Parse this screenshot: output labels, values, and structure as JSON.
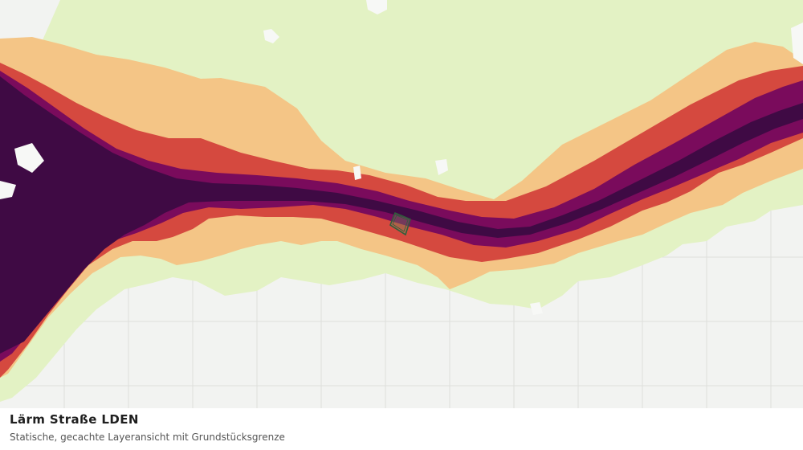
{
  "caption": {
    "title": "Lärm Straße LDEN",
    "subtitle": "Statische, gecachte Layeransicht mit Grundstücksgrenze"
  },
  "map": {
    "type": "noise-map",
    "basemap_color": "#f2f3f1",
    "grid_line_color": "#dedfdc",
    "parcel_outline_color": "#2f5e3b",
    "noise_band_colors": [
      "#e3f2c4",
      "#f4c586",
      "#d5493f",
      "#7a0b5c",
      "#3f0a44"
    ]
  }
}
